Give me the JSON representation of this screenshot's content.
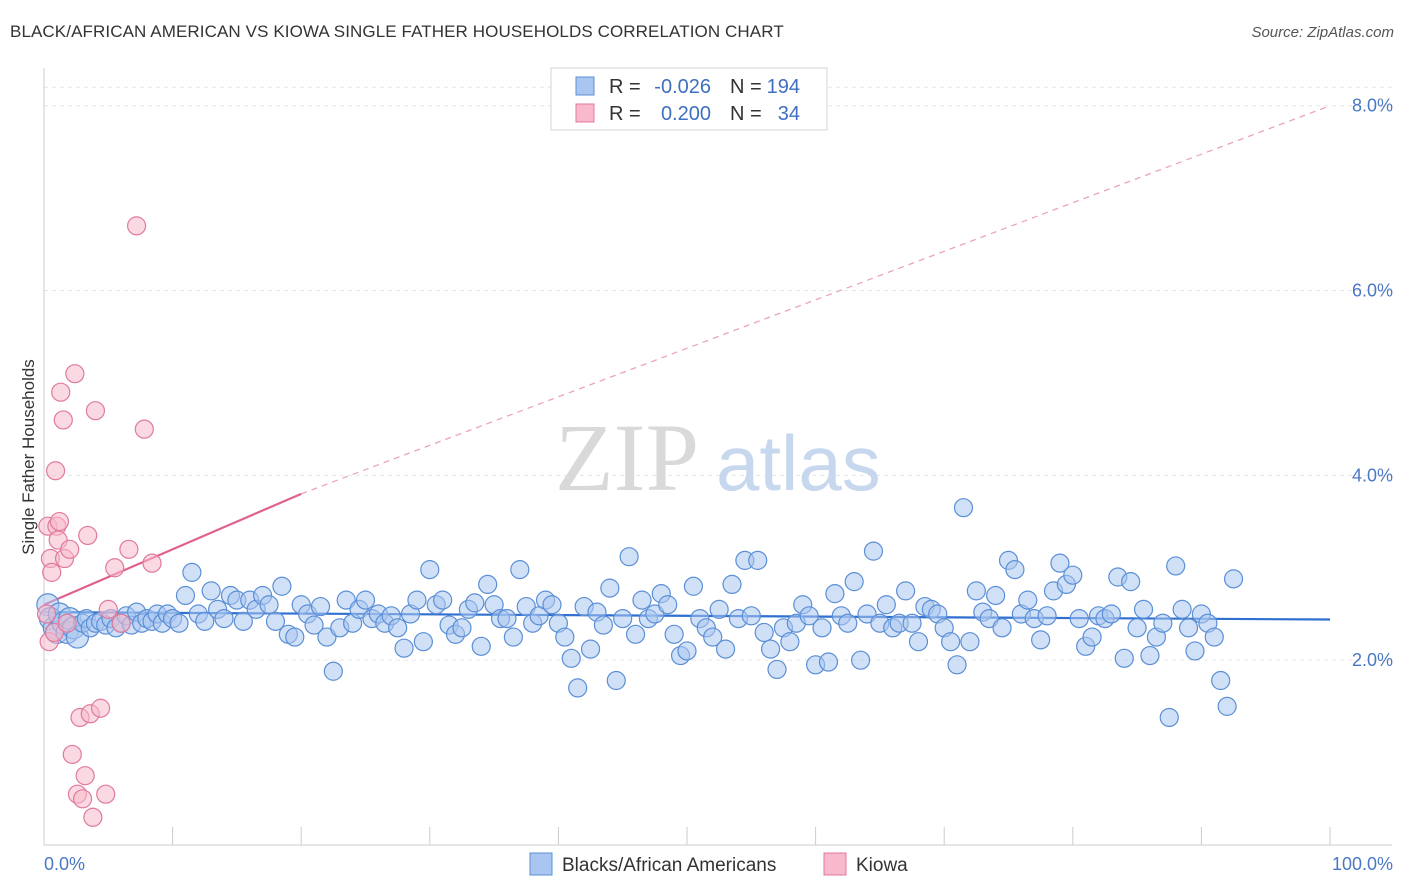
{
  "header": {
    "title": "BLACK/AFRICAN AMERICAN VS KIOWA SINGLE FATHER HOUSEHOLDS CORRELATION CHART",
    "source": "Source: ZipAtlas.com"
  },
  "watermark": {
    "zip": "ZIP",
    "atlas": "atlas"
  },
  "legend": {
    "rows": [
      {
        "r_label": "R =",
        "r_value": "-0.026",
        "n_label": "N =",
        "n_value": "194",
        "color": "#a9c6f0",
        "edge": "#5b8fd6"
      },
      {
        "r_label": "R =",
        "r_value": "0.200",
        "n_label": "N =",
        "n_value": "34",
        "color": "#f7b9cb",
        "edge": "#e07a9c"
      }
    ]
  },
  "bottom_legend": {
    "items": [
      {
        "label": "Blacks/African Americans",
        "color": "#a9c6f0",
        "edge": "#5b8fd6"
      },
      {
        "label": "Kiowa",
        "color": "#f7b9cb",
        "edge": "#e07a9c"
      }
    ]
  },
  "chart_data": {
    "type": "scatter",
    "title": "BLACK/AFRICAN AMERICAN VS KIOWA SINGLE FATHER HOUSEHOLDS CORRELATION CHART",
    "xlabel": "",
    "ylabel": "Single Father Households",
    "xlim": [
      0,
      100
    ],
    "ylim": [
      0,
      8.3
    ],
    "x_tick_labels": [
      "0.0%",
      "100.0%"
    ],
    "y_ticks": [
      2.0,
      4.0,
      6.0,
      8.0
    ],
    "y_tick_labels": [
      "2.0%",
      "4.0%",
      "6.0%",
      "8.0%"
    ],
    "grid": true,
    "legend_position": "top-center",
    "series": [
      {
        "name": "Blacks/African Americans",
        "color": "#a9c6f0",
        "edge": "#5b8fd6",
        "trend": {
          "x": [
            0,
            100
          ],
          "y": [
            2.52,
            2.44
          ],
          "style": "solid"
        },
        "points": [
          [
            0.3,
            2.6
          ],
          [
            0.5,
            2.45
          ],
          [
            0.8,
            2.35
          ],
          [
            1.0,
            2.3
          ],
          [
            1.2,
            2.5
          ],
          [
            1.5,
            2.4
          ],
          [
            1.8,
            2.3
          ],
          [
            2.0,
            2.45
          ],
          [
            2.3,
            2.35
          ],
          [
            2.6,
            2.25
          ],
          [
            3.0,
            2.4
          ],
          [
            3.3,
            2.45
          ],
          [
            3.6,
            2.35
          ],
          [
            4.0,
            2.4
          ],
          [
            4.4,
            2.42
          ],
          [
            4.8,
            2.38
          ],
          [
            5.2,
            2.45
          ],
          [
            5.6,
            2.35
          ],
          [
            6.0,
            2.4
          ],
          [
            6.4,
            2.48
          ],
          [
            6.8,
            2.38
          ],
          [
            7.2,
            2.52
          ],
          [
            7.6,
            2.4
          ],
          [
            8.0,
            2.45
          ],
          [
            8.4,
            2.42
          ],
          [
            8.8,
            2.5
          ],
          [
            9.2,
            2.4
          ],
          [
            9.6,
            2.5
          ],
          [
            10.0,
            2.45
          ],
          [
            10.5,
            2.4
          ],
          [
            11.0,
            2.7
          ],
          [
            11.5,
            2.95
          ],
          [
            12.0,
            2.5
          ],
          [
            12.5,
            2.42
          ],
          [
            13.0,
            2.75
          ],
          [
            13.5,
            2.55
          ],
          [
            14.0,
            2.45
          ],
          [
            14.5,
            2.7
          ],
          [
            15.0,
            2.65
          ],
          [
            15.5,
            2.42
          ],
          [
            16.0,
            2.65
          ],
          [
            16.5,
            2.55
          ],
          [
            17.0,
            2.7
          ],
          [
            17.5,
            2.6
          ],
          [
            18.0,
            2.42
          ],
          [
            18.5,
            2.8
          ],
          [
            19.0,
            2.28
          ],
          [
            19.5,
            2.25
          ],
          [
            20.0,
            2.6
          ],
          [
            20.5,
            2.5
          ],
          [
            21.0,
            2.38
          ],
          [
            21.5,
            2.58
          ],
          [
            22.0,
            2.25
          ],
          [
            22.5,
            1.88
          ],
          [
            23.0,
            2.35
          ],
          [
            23.5,
            2.65
          ],
          [
            24.0,
            2.4
          ],
          [
            24.5,
            2.55
          ],
          [
            25.0,
            2.65
          ],
          [
            25.5,
            2.45
          ],
          [
            26.0,
            2.5
          ],
          [
            26.5,
            2.4
          ],
          [
            27.0,
            2.48
          ],
          [
            27.5,
            2.35
          ],
          [
            28.0,
            2.13
          ],
          [
            28.5,
            2.5
          ],
          [
            29.0,
            2.65
          ],
          [
            29.5,
            2.2
          ],
          [
            30.0,
            2.98
          ],
          [
            30.5,
            2.6
          ],
          [
            31.0,
            2.65
          ],
          [
            31.5,
            2.38
          ],
          [
            32.0,
            2.28
          ],
          [
            32.5,
            2.35
          ],
          [
            33.0,
            2.55
          ],
          [
            33.5,
            2.62
          ],
          [
            34.0,
            2.15
          ],
          [
            34.5,
            2.82
          ],
          [
            35.0,
            2.6
          ],
          [
            35.5,
            2.45
          ],
          [
            36.0,
            2.45
          ],
          [
            36.5,
            2.25
          ],
          [
            37.0,
            2.98
          ],
          [
            37.5,
            2.58
          ],
          [
            38.0,
            2.4
          ],
          [
            38.5,
            2.48
          ],
          [
            39.0,
            2.65
          ],
          [
            39.5,
            2.6
          ],
          [
            40.0,
            2.4
          ],
          [
            40.5,
            2.25
          ],
          [
            41.0,
            2.02
          ],
          [
            41.5,
            1.7
          ],
          [
            42.0,
            2.58
          ],
          [
            42.5,
            2.12
          ],
          [
            43.0,
            2.52
          ],
          [
            43.5,
            2.38
          ],
          [
            44.0,
            2.78
          ],
          [
            44.5,
            1.78
          ],
          [
            45.0,
            2.45
          ],
          [
            45.5,
            3.12
          ],
          [
            46.0,
            2.28
          ],
          [
            46.5,
            2.65
          ],
          [
            47.0,
            2.45
          ],
          [
            47.5,
            2.5
          ],
          [
            48.0,
            2.72
          ],
          [
            48.5,
            2.6
          ],
          [
            49.0,
            2.28
          ],
          [
            49.5,
            2.05
          ],
          [
            50.0,
            2.1
          ],
          [
            50.5,
            2.8
          ],
          [
            51.0,
            2.45
          ],
          [
            51.5,
            2.35
          ],
          [
            52.0,
            2.25
          ],
          [
            52.5,
            2.55
          ],
          [
            53.0,
            2.12
          ],
          [
            53.5,
            2.82
          ],
          [
            54.0,
            2.45
          ],
          [
            54.5,
            3.08
          ],
          [
            55.0,
            2.48
          ],
          [
            55.5,
            3.08
          ],
          [
            56.0,
            2.3
          ],
          [
            56.5,
            2.12
          ],
          [
            57.0,
            1.9
          ],
          [
            57.5,
            2.35
          ],
          [
            58.0,
            2.2
          ],
          [
            58.5,
            2.4
          ],
          [
            59.0,
            2.6
          ],
          [
            59.5,
            2.48
          ],
          [
            60.0,
            1.95
          ],
          [
            60.5,
            2.35
          ],
          [
            61.0,
            1.98
          ],
          [
            61.5,
            2.72
          ],
          [
            62.0,
            2.48
          ],
          [
            62.5,
            2.4
          ],
          [
            63.0,
            2.85
          ],
          [
            63.5,
            2.0
          ],
          [
            64.0,
            2.5
          ],
          [
            64.5,
            3.18
          ],
          [
            65.0,
            2.4
          ],
          [
            65.5,
            2.6
          ],
          [
            66.0,
            2.35
          ],
          [
            66.5,
            2.4
          ],
          [
            67.0,
            2.75
          ],
          [
            67.5,
            2.4
          ],
          [
            68.0,
            2.2
          ],
          [
            68.5,
            2.58
          ],
          [
            69.0,
            2.55
          ],
          [
            69.5,
            2.5
          ],
          [
            70.0,
            2.35
          ],
          [
            70.5,
            2.2
          ],
          [
            71.0,
            1.95
          ],
          [
            71.5,
            3.65
          ],
          [
            72.0,
            2.2
          ],
          [
            72.5,
            2.75
          ],
          [
            73.0,
            2.52
          ],
          [
            73.5,
            2.45
          ],
          [
            74.0,
            2.7
          ],
          [
            74.5,
            2.35
          ],
          [
            75.0,
            3.08
          ],
          [
            75.5,
            2.98
          ],
          [
            76.0,
            2.5
          ],
          [
            76.5,
            2.65
          ],
          [
            77.0,
            2.45
          ],
          [
            77.5,
            2.22
          ],
          [
            78.0,
            2.48
          ],
          [
            78.5,
            2.75
          ],
          [
            79.0,
            3.05
          ],
          [
            79.5,
            2.82
          ],
          [
            80.0,
            2.92
          ],
          [
            80.5,
            2.45
          ],
          [
            81.0,
            2.15
          ],
          [
            81.5,
            2.25
          ],
          [
            82.0,
            2.48
          ],
          [
            82.5,
            2.45
          ],
          [
            83.0,
            2.5
          ],
          [
            83.5,
            2.9
          ],
          [
            84.0,
            2.02
          ],
          [
            84.5,
            2.85
          ],
          [
            85.0,
            2.35
          ],
          [
            85.5,
            2.55
          ],
          [
            86.0,
            2.05
          ],
          [
            86.5,
            2.25
          ],
          [
            87.0,
            2.4
          ],
          [
            87.5,
            1.38
          ],
          [
            88.0,
            3.02
          ],
          [
            88.5,
            2.55
          ],
          [
            89.0,
            2.35
          ],
          [
            89.5,
            2.1
          ],
          [
            90.0,
            2.5
          ],
          [
            90.5,
            2.4
          ],
          [
            91.0,
            2.25
          ],
          [
            91.5,
            1.78
          ],
          [
            92.0,
            1.5
          ],
          [
            92.5,
            2.88
          ]
        ]
      },
      {
        "name": "Kiowa",
        "color": "#f7b9cb",
        "edge": "#e07a9c",
        "trend": {
          "x": [
            0,
            20
          ],
          "y": [
            2.6,
            3.8
          ],
          "style": "solid",
          "extended": {
            "x": [
              20,
              100
            ],
            "y": [
              3.8,
              8.0
            ],
            "style": "dashed"
          }
        },
        "points": [
          [
            0.2,
            2.5
          ],
          [
            0.3,
            3.45
          ],
          [
            0.4,
            2.2
          ],
          [
            0.5,
            3.1
          ],
          [
            0.6,
            2.95
          ],
          [
            0.8,
            2.3
          ],
          [
            0.9,
            4.05
          ],
          [
            1.0,
            3.45
          ],
          [
            1.1,
            3.3
          ],
          [
            1.2,
            3.5
          ],
          [
            1.3,
            4.9
          ],
          [
            1.5,
            4.6
          ],
          [
            1.6,
            3.1
          ],
          [
            1.8,
            2.4
          ],
          [
            2.0,
            3.2
          ],
          [
            2.2,
            0.98
          ],
          [
            2.4,
            5.1
          ],
          [
            2.6,
            0.55
          ],
          [
            2.8,
            1.38
          ],
          [
            3.0,
            0.5
          ],
          [
            3.2,
            0.75
          ],
          [
            3.4,
            3.35
          ],
          [
            3.6,
            1.42
          ],
          [
            3.8,
            0.3
          ],
          [
            4.0,
            4.7
          ],
          [
            4.4,
            1.48
          ],
          [
            4.8,
            0.55
          ],
          [
            5.0,
            2.55
          ],
          [
            5.5,
            3.0
          ],
          [
            6.0,
            2.4
          ],
          [
            6.6,
            3.2
          ],
          [
            7.2,
            6.7
          ],
          [
            7.8,
            4.5
          ],
          [
            8.4,
            3.05
          ]
        ]
      }
    ]
  }
}
